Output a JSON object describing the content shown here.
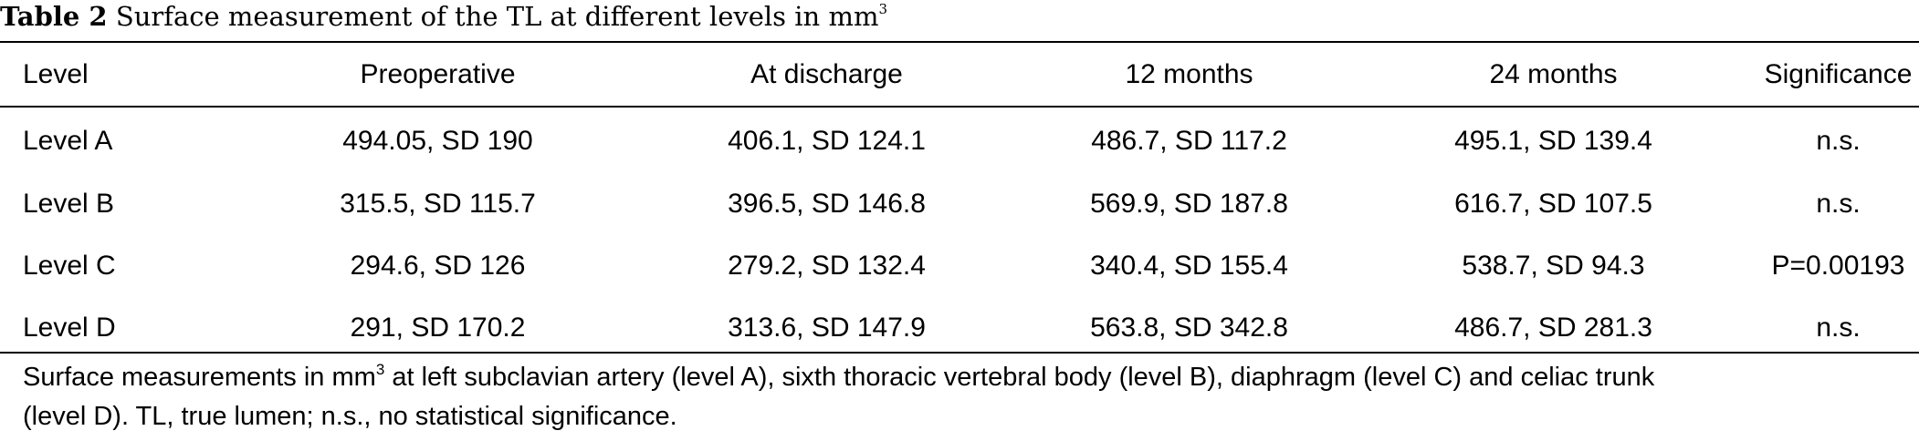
{
  "caption": {
    "label": "Table 2",
    "text": "Surface measurement of the TL at different levels in mm",
    "superscript": "3"
  },
  "table": {
    "headers": [
      "Level",
      "Preoperative",
      "At discharge",
      "12 months",
      "24 months",
      "Significance"
    ],
    "rows": [
      [
        "Level A",
        "494.05, SD 190",
        "406.1, SD 124.1",
        "486.7, SD 117.2",
        "495.1, SD 139.4",
        "n.s."
      ],
      [
        "Level B",
        "315.5, SD 115.7",
        "396.5, SD 146.8",
        "569.9, SD 187.8",
        "616.7, SD 107.5",
        "n.s."
      ],
      [
        "Level C",
        "294.6, SD 126",
        "279.2, SD 132.4",
        "340.4, SD 155.4",
        "538.7, SD 94.3",
        "P=0.00193"
      ],
      [
        "Level D",
        "291, SD 170.2",
        "313.6, SD 147.9",
        "563.8, SD 342.8",
        "486.7, SD 281.3",
        "n.s."
      ]
    ]
  },
  "footnote": {
    "line1_before": "Surface measurements in mm",
    "line1_superscript": "3",
    "line1_after": " at left subclavian artery (level A), sixth thoracic vertebral body (level B), diaphragm (level C) and celiac trunk",
    "line2": "(level D). TL, true lumen; n.s., no statistical significance."
  }
}
